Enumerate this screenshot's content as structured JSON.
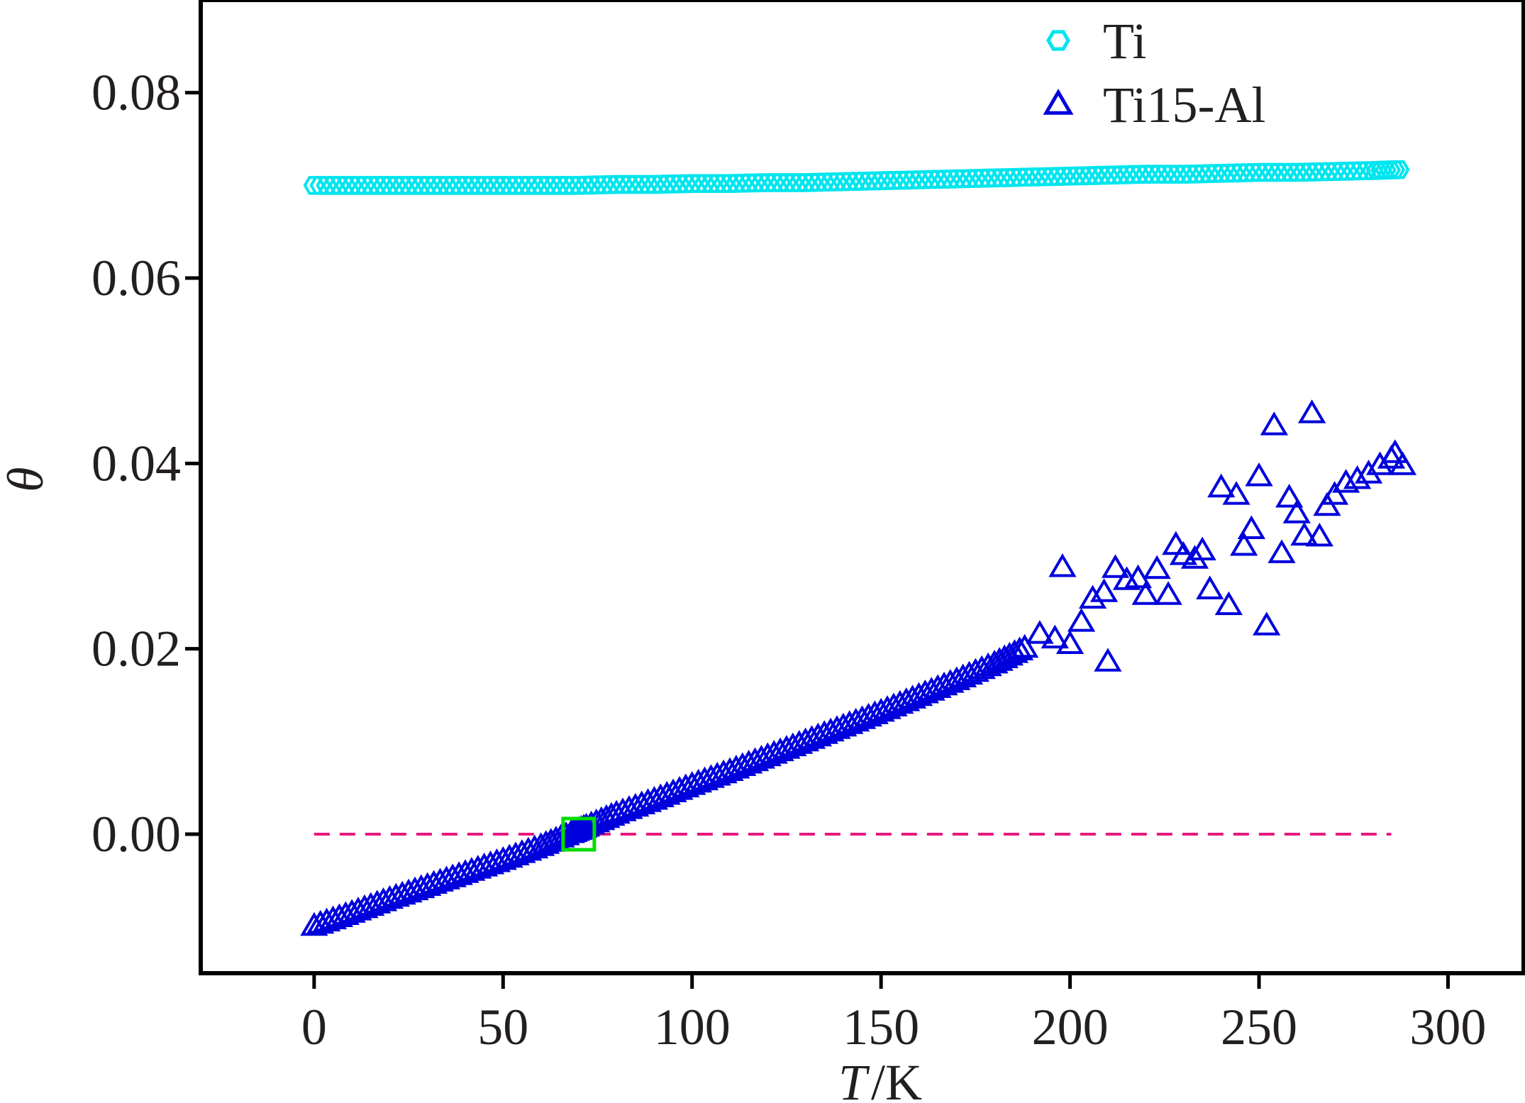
{
  "chart_data": {
    "type": "scatter",
    "xlabel_var": "T",
    "xlabel_unit": "/K",
    "ylabel": "θ",
    "xlim": [
      -30,
      320
    ],
    "ylim": [
      -0.015,
      0.09
    ],
    "xticks": [
      0,
      50,
      100,
      150,
      200,
      250,
      300
    ],
    "xtick_labels": [
      "0",
      "50",
      "100",
      "150",
      "200",
      "250",
      "300"
    ],
    "yticks": [
      0.0,
      0.02,
      0.04,
      0.06,
      0.08
    ],
    "ytick_labels": [
      "0.00",
      "0.02",
      "0.04",
      "0.06",
      "0.08"
    ],
    "legend_position": "top-right",
    "reference_line": {
      "y": 0.0,
      "x_range": [
        0,
        285
      ],
      "style": "dashed",
      "color": "#e8177d"
    },
    "highlight_marker": {
      "x": 70,
      "y": 0.0,
      "shape": "square",
      "color": "#00dd00"
    },
    "series": [
      {
        "name": "Ti",
        "marker": "hexagon",
        "color": "#00e5ee",
        "x": [
          0,
          10,
          20,
          30,
          40,
          50,
          60,
          70,
          80,
          90,
          100,
          110,
          120,
          130,
          140,
          150,
          160,
          170,
          180,
          190,
          200,
          210,
          220,
          230,
          240,
          250,
          260,
          270,
          280,
          287
        ],
        "y": [
          0.07,
          0.07,
          0.07,
          0.07,
          0.07,
          0.07,
          0.07,
          0.07,
          0.0701,
          0.0701,
          0.0702,
          0.0702,
          0.0703,
          0.0703,
          0.0704,
          0.0705,
          0.0706,
          0.0707,
          0.0708,
          0.0709,
          0.071,
          0.0711,
          0.0712,
          0.0712,
          0.0713,
          0.0714,
          0.0714,
          0.0715,
          0.0716,
          0.0717
        ]
      },
      {
        "name": "Ti15-Al",
        "marker": "triangle",
        "color": "#0000dd",
        "x": [
          0,
          10,
          20,
          30,
          40,
          50,
          60,
          68,
          72,
          80,
          90,
          100,
          110,
          120,
          130,
          140,
          150,
          160,
          170,
          180,
          188,
          192,
          196,
          198,
          200,
          203,
          206,
          209,
          210,
          212,
          215,
          218,
          220,
          223,
          226,
          228,
          230,
          233,
          235,
          237,
          240,
          242,
          244,
          246,
          248,
          250,
          252,
          254,
          256,
          258,
          260,
          262,
          264,
          266,
          268,
          270,
          273,
          276,
          279,
          282,
          285,
          286,
          288
        ],
        "y": [
          -0.01,
          -0.0086,
          -0.0071,
          -0.0057,
          -0.0043,
          -0.0029,
          -0.0014,
          0.0,
          0.0007,
          0.0021,
          0.0036,
          0.0052,
          0.0067,
          0.0083,
          0.0099,
          0.0115,
          0.0131,
          0.0148,
          0.0165,
          0.0183,
          0.02,
          0.0215,
          0.021,
          0.0287,
          0.0204,
          0.0228,
          0.0253,
          0.026,
          0.0185,
          0.0286,
          0.0273,
          0.0275,
          0.0257,
          0.0285,
          0.0257,
          0.0311,
          0.03,
          0.0296,
          0.0305,
          0.0263,
          0.0373,
          0.0246,
          0.0365,
          0.031,
          0.0328,
          0.0385,
          0.0224,
          0.044,
          0.0302,
          0.0362,
          0.0345,
          0.0321,
          0.0453,
          0.032,
          0.0353,
          0.0365,
          0.0378,
          0.0382,
          0.0388,
          0.0397,
          0.0404,
          0.041,
          0.0397
        ]
      }
    ]
  }
}
